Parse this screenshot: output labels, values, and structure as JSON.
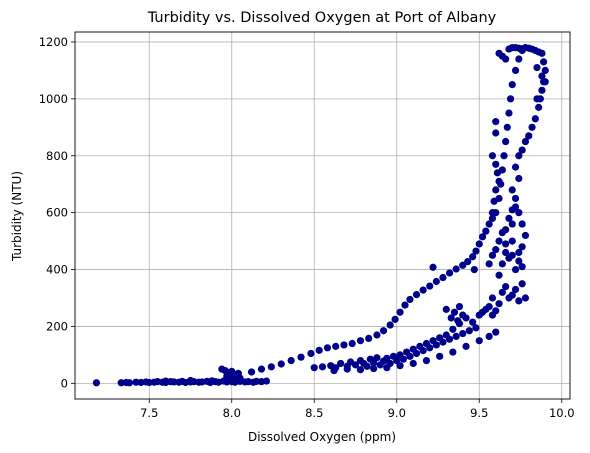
{
  "chart_data": {
    "type": "scatter",
    "title": "Turbidity vs. Dissolved Oxygen at Port of Albany",
    "xlabel": "Dissolved Oxygen (ppm)",
    "ylabel": "Turbidity (NTU)",
    "xlim": [
      7.05,
      10.05
    ],
    "ylim": [
      -55,
      1235
    ],
    "xticks": [
      7.5,
      8.0,
      8.5,
      9.0,
      9.5,
      10.0
    ],
    "xtick_labels": [
      "7.5",
      "8.0",
      "8.5",
      "9.0",
      "9.5",
      "10.0"
    ],
    "yticks": [
      0,
      200,
      400,
      600,
      800,
      1000,
      1200
    ],
    "ytick_labels": [
      "0",
      "200",
      "400",
      "600",
      "800",
      "1000",
      "1200"
    ],
    "grid": true,
    "marker_color": "#00008b",
    "series": [
      {
        "points": [
          [
            7.18,
            2
          ],
          [
            7.33,
            2
          ],
          [
            7.36,
            3
          ],
          [
            7.38,
            2
          ],
          [
            7.42,
            4
          ],
          [
            7.45,
            3
          ],
          [
            7.48,
            5
          ],
          [
            7.5,
            3
          ],
          [
            7.53,
            4
          ],
          [
            7.55,
            6
          ],
          [
            7.58,
            4
          ],
          [
            7.6,
            3
          ],
          [
            7.63,
            6
          ],
          [
            7.65,
            5
          ],
          [
            7.68,
            4
          ],
          [
            7.7,
            7
          ],
          [
            7.72,
            3
          ],
          [
            7.75,
            5
          ],
          [
            7.77,
            6
          ],
          [
            7.8,
            4
          ],
          [
            7.82,
            5
          ],
          [
            7.85,
            7
          ],
          [
            7.87,
            3
          ],
          [
            7.9,
            6
          ],
          [
            7.92,
            4
          ],
          [
            7.95,
            8
          ],
          [
            7.97,
            5
          ],
          [
            8.0,
            6
          ],
          [
            8.02,
            4
          ],
          [
            8.05,
            7
          ],
          [
            8.08,
            5
          ],
          [
            8.1,
            6
          ],
          [
            8.13,
            4
          ],
          [
            8.15,
            7
          ],
          [
            8.18,
            6
          ],
          [
            8.21,
            8
          ],
          [
            7.6,
            8
          ],
          [
            7.75,
            10
          ],
          [
            7.88,
            9
          ],
          [
            8.0,
            12
          ],
          [
            7.94,
            50
          ],
          [
            7.96,
            45
          ],
          [
            7.98,
            38
          ],
          [
            8.0,
            42
          ],
          [
            8.02,
            30
          ],
          [
            8.04,
            35
          ],
          [
            7.97,
            25
          ],
          [
            8.01,
            22
          ],
          [
            8.05,
            18
          ],
          [
            7.99,
            15
          ],
          [
            8.12,
            40
          ],
          [
            8.18,
            50
          ],
          [
            8.24,
            58
          ],
          [
            8.3,
            68
          ],
          [
            8.36,
            80
          ],
          [
            8.42,
            92
          ],
          [
            8.48,
            105
          ],
          [
            8.53,
            116
          ],
          [
            8.58,
            125
          ],
          [
            8.63,
            130
          ],
          [
            8.68,
            135
          ],
          [
            8.73,
            140
          ],
          [
            8.78,
            150
          ],
          [
            8.83,
            158
          ],
          [
            8.88,
            170
          ],
          [
            8.92,
            185
          ],
          [
            8.96,
            205
          ],
          [
            8.99,
            225
          ],
          [
            9.02,
            250
          ],
          [
            9.05,
            275
          ],
          [
            9.08,
            295
          ],
          [
            9.12,
            312
          ],
          [
            9.16,
            328
          ],
          [
            9.2,
            342
          ],
          [
            9.24,
            358
          ],
          [
            9.28,
            372
          ],
          [
            9.32,
            388
          ],
          [
            9.36,
            402
          ],
          [
            9.4,
            415
          ],
          [
            9.43,
            428
          ],
          [
            9.46,
            445
          ],
          [
            9.48,
            465
          ],
          [
            9.5,
            490
          ],
          [
            9.52,
            515
          ],
          [
            9.54,
            535
          ],
          [
            9.56,
            560
          ],
          [
            9.58,
            580
          ],
          [
            9.6,
            600
          ],
          [
            9.22,
            408
          ],
          [
            9.47,
            400
          ],
          [
            8.5,
            55
          ],
          [
            8.55,
            58
          ],
          [
            8.6,
            62
          ],
          [
            8.63,
            55
          ],
          [
            8.66,
            70
          ],
          [
            8.7,
            60
          ],
          [
            8.72,
            75
          ],
          [
            8.75,
            65
          ],
          [
            8.78,
            80
          ],
          [
            8.8,
            70
          ],
          [
            8.82,
            60
          ],
          [
            8.84,
            85
          ],
          [
            8.86,
            72
          ],
          [
            8.88,
            90
          ],
          [
            8.9,
            65
          ],
          [
            8.92,
            78
          ],
          [
            8.94,
            88
          ],
          [
            8.96,
            70
          ],
          [
            8.98,
            95
          ],
          [
            9.0,
            80
          ],
          [
            9.02,
            100
          ],
          [
            9.04,
            85
          ],
          [
            9.06,
            110
          ],
          [
            9.08,
            95
          ],
          [
            9.1,
            120
          ],
          [
            9.12,
            105
          ],
          [
            9.14,
            130
          ],
          [
            9.16,
            115
          ],
          [
            9.18,
            140
          ],
          [
            9.2,
            125
          ],
          [
            9.22,
            150
          ],
          [
            9.24,
            135
          ],
          [
            9.26,
            160
          ],
          [
            9.28,
            145
          ],
          [
            9.3,
            170
          ],
          [
            9.32,
            155
          ],
          [
            9.34,
            190
          ],
          [
            9.36,
            165
          ],
          [
            9.38,
            210
          ],
          [
            9.4,
            175
          ],
          [
            9.42,
            230
          ],
          [
            9.44,
            185
          ],
          [
            9.46,
            215
          ],
          [
            9.48,
            195
          ],
          [
            9.5,
            240
          ],
          [
            9.52,
            250
          ],
          [
            9.54,
            260
          ],
          [
            9.56,
            270
          ],
          [
            9.58,
            240
          ],
          [
            9.6,
            255
          ],
          [
            8.62,
            45
          ],
          [
            8.7,
            50
          ],
          [
            8.78,
            48
          ],
          [
            8.86,
            52
          ],
          [
            8.94,
            55
          ],
          [
            9.02,
            62
          ],
          [
            9.1,
            70
          ],
          [
            9.18,
            80
          ],
          [
            9.26,
            95
          ],
          [
            9.34,
            110
          ],
          [
            9.42,
            130
          ],
          [
            9.5,
            150
          ],
          [
            9.56,
            165
          ],
          [
            9.6,
            180
          ],
          [
            9.3,
            260
          ],
          [
            9.35,
            250
          ],
          [
            9.38,
            270
          ],
          [
            9.4,
            240
          ],
          [
            9.33,
            230
          ],
          [
            9.37,
            220
          ],
          [
            9.58,
            300
          ],
          [
            9.62,
            280
          ],
          [
            9.64,
            320
          ],
          [
            9.66,
            340
          ],
          [
            9.68,
            300
          ],
          [
            9.7,
            310
          ],
          [
            9.72,
            330
          ],
          [
            9.74,
            290
          ],
          [
            9.76,
            350
          ],
          [
            9.78,
            300
          ],
          [
            9.62,
            380
          ],
          [
            9.64,
            420
          ],
          [
            9.66,
            460
          ],
          [
            9.68,
            440
          ],
          [
            9.7,
            500
          ],
          [
            9.66,
            540
          ],
          [
            9.68,
            580
          ],
          [
            9.7,
            610
          ],
          [
            9.72,
            620
          ],
          [
            9.7,
            560
          ],
          [
            9.56,
            420
          ],
          [
            9.58,
            450
          ],
          [
            9.6,
            470
          ],
          [
            9.62,
            500
          ],
          [
            9.64,
            530
          ],
          [
            9.66,
            490
          ],
          [
            9.72,
            400
          ],
          [
            9.74,
            430
          ],
          [
            9.7,
            450
          ],
          [
            9.76,
            410
          ],
          [
            9.62,
            650
          ],
          [
            9.63,
            700
          ],
          [
            9.64,
            750
          ],
          [
            9.65,
            800
          ],
          [
            9.66,
            850
          ],
          [
            9.67,
            900
          ],
          [
            9.68,
            950
          ],
          [
            9.69,
            1000
          ],
          [
            9.7,
            1050
          ],
          [
            9.72,
            1100
          ],
          [
            9.74,
            1140
          ],
          [
            9.76,
            1170
          ],
          [
            9.78,
            1180
          ],
          [
            9.8,
            1178
          ],
          [
            9.82,
            1175
          ],
          [
            9.84,
            1170
          ],
          [
            9.86,
            1165
          ],
          [
            9.88,
            1160
          ],
          [
            9.89,
            1130
          ],
          [
            9.9,
            1100
          ],
          [
            9.89,
            1060
          ],
          [
            9.88,
            1030
          ],
          [
            9.87,
            1000
          ],
          [
            9.86,
            970
          ],
          [
            9.84,
            930
          ],
          [
            9.82,
            900
          ],
          [
            9.8,
            870
          ],
          [
            9.78,
            850
          ],
          [
            9.76,
            820
          ],
          [
            9.74,
            800
          ],
          [
            9.62,
            1160
          ],
          [
            9.64,
            1150
          ],
          [
            9.66,
            1140
          ],
          [
            9.68,
            1175
          ],
          [
            9.7,
            1180
          ],
          [
            9.72,
            1180
          ],
          [
            9.74,
            1178
          ],
          [
            9.76,
            1176
          ],
          [
            9.6,
            920
          ],
          [
            9.6,
            880
          ],
          [
            9.58,
            800
          ],
          [
            9.6,
            770
          ],
          [
            9.61,
            740
          ],
          [
            9.62,
            710
          ],
          [
            9.6,
            680
          ],
          [
            9.59,
            640
          ],
          [
            9.58,
            600
          ],
          [
            9.72,
            760
          ],
          [
            9.74,
            720
          ],
          [
            9.7,
            680
          ],
          [
            9.72,
            650
          ],
          [
            9.74,
            600
          ],
          [
            9.76,
            560
          ],
          [
            9.78,
            520
          ],
          [
            9.76,
            480
          ],
          [
            9.74,
            460
          ],
          [
            9.85,
            1000
          ],
          [
            9.88,
            1080
          ],
          [
            9.9,
            1060
          ],
          [
            9.85,
            1110
          ]
        ]
      }
    ]
  }
}
